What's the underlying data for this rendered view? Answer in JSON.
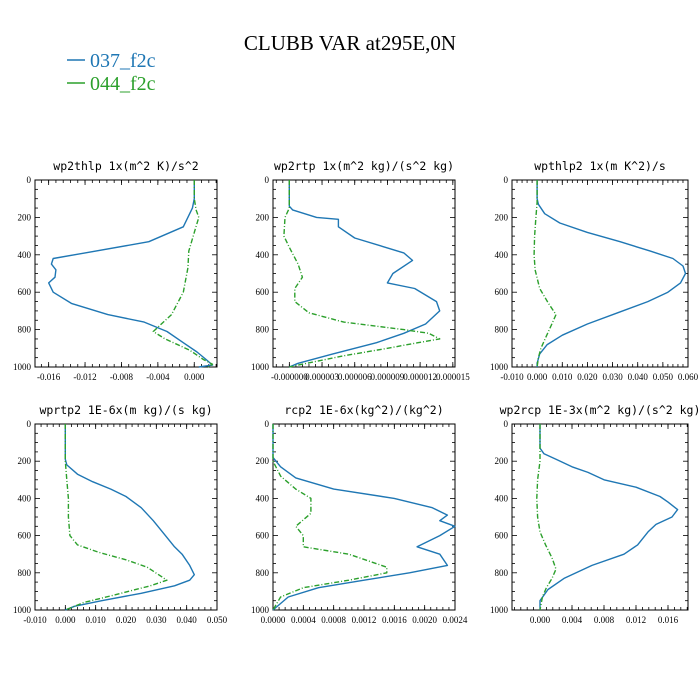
{
  "figure": {
    "title": "CLUBB VAR at295E,0N",
    "legend": [
      {
        "label": "037_f2c",
        "color": "#1f77b4",
        "style": "solid"
      },
      {
        "label": "044_f2c",
        "color": "#2ca02c",
        "style": "dashdot"
      }
    ]
  },
  "chart_data": [
    {
      "type": "line",
      "title": "wp2thlp  1x(m^2 K)/s^2",
      "xlim": [
        -0.0175,
        0.0025
      ],
      "ylim": [
        1000,
        0
      ],
      "xticks": [
        -0.016,
        -0.012,
        -0.008,
        -0.004,
        0.0
      ],
      "xtick_labels": [
        "-0.016",
        "-0.012",
        "-0.008",
        "-0.004",
        "0.000"
      ],
      "yticks": [
        0,
        200,
        400,
        600,
        800,
        1000
      ],
      "series": [
        {
          "name": "037_f2c",
          "points": [
            [
              0.0,
              0
            ],
            [
              0.0,
              50
            ],
            [
              0.0,
              100
            ],
            [
              -0.0002,
              150
            ],
            [
              -0.0012,
              250
            ],
            [
              -0.005,
              330
            ],
            [
              -0.012,
              390
            ],
            [
              -0.0155,
              420
            ],
            [
              -0.0157,
              450
            ],
            [
              -0.0152,
              480
            ],
            [
              -0.0153,
              520
            ],
            [
              -0.016,
              550
            ],
            [
              -0.0155,
              600
            ],
            [
              -0.0135,
              660
            ],
            [
              -0.0095,
              720
            ],
            [
              -0.0055,
              760
            ],
            [
              -0.003,
              810
            ],
            [
              -0.0012,
              870
            ],
            [
              0.0003,
              920
            ],
            [
              0.0013,
              960
            ],
            [
              0.002,
              990
            ],
            [
              0.0005,
              1000
            ]
          ]
        },
        {
          "name": "044_f2c",
          "points": [
            [
              0.0,
              0
            ],
            [
              0.0,
              80
            ],
            [
              0.0,
              100
            ],
            [
              0.0002,
              160
            ],
            [
              0.0005,
              200
            ],
            [
              0.0,
              280
            ],
            [
              -0.0006,
              380
            ],
            [
              -0.0007,
              470
            ],
            [
              -0.0012,
              600
            ],
            [
              -0.0025,
              720
            ],
            [
              -0.0045,
              810
            ],
            [
              -0.0032,
              850
            ],
            [
              -0.0005,
              910
            ],
            [
              0.001,
              960
            ],
            [
              0.002,
              985
            ],
            [
              0.0015,
              1000
            ]
          ]
        }
      ]
    },
    {
      "type": "line",
      "title": "wp2rtp  1x(m^2 kg)/(s^2 kg)",
      "xlim": [
        -1.5e-06,
        1.52e-05
      ],
      "ylim": [
        1000,
        0
      ],
      "xticks": [
        0.0,
        3e-06,
        6e-06,
        9e-06,
        1.2e-05,
        1.5e-05
      ],
      "xtick_labels": [
        "-0.000000",
        "0.000003",
        "0.000006",
        "0.000009",
        "0.000012",
        "0.000015"
      ],
      "yticks": [
        0,
        200,
        400,
        600,
        800,
        1000
      ],
      "series": [
        {
          "name": "037_f2c",
          "points": [
            [
              0.0,
              0
            ],
            [
              0.0,
              140
            ],
            [
              3e-07,
              160
            ],
            [
              2.5e-06,
              200
            ],
            [
              4.5e-06,
              210
            ],
            [
              4.5e-06,
              250
            ],
            [
              6e-06,
              310
            ],
            [
              1.05e-05,
              390
            ],
            [
              1.13e-05,
              430
            ],
            [
              9.5e-06,
              500
            ],
            [
              9e-06,
              550
            ],
            [
              1.15e-05,
              580
            ],
            [
              1.35e-05,
              650
            ],
            [
              1.38e-05,
              700
            ],
            [
              1.25e-05,
              770
            ],
            [
              1.05e-05,
              820
            ],
            [
              8e-06,
              870
            ],
            [
              4e-06,
              930
            ],
            [
              8e-07,
              980
            ],
            [
              0.0,
              1000
            ]
          ]
        },
        {
          "name": "044_f2c",
          "points": [
            [
              0.0,
              0
            ],
            [
              0.0,
              150
            ],
            [
              -4e-07,
              200
            ],
            [
              -5e-07,
              300
            ],
            [
              0.0,
              360
            ],
            [
              8e-07,
              450
            ],
            [
              1.2e-06,
              520
            ],
            [
              5e-07,
              580
            ],
            [
              5e-07,
              650
            ],
            [
              1.8e-06,
              710
            ],
            [
              5e-06,
              760
            ],
            [
              1.05e-05,
              800
            ],
            [
              1.28e-05,
              820
            ],
            [
              1.38e-05,
              850
            ],
            [
              1.18e-05,
              870
            ],
            [
              9e-06,
              900
            ],
            [
              5e-06,
              940
            ],
            [
              1.2e-06,
              985
            ],
            [
              0.0,
              1000
            ]
          ]
        }
      ]
    },
    {
      "type": "line",
      "title": "wpthlp2  1x(m K^2)/s",
      "xlim": [
        -0.01,
        0.06
      ],
      "ylim": [
        1000,
        0
      ],
      "xticks": [
        -0.01,
        0.0,
        0.01,
        0.02,
        0.03,
        0.04,
        0.05,
        0.06
      ],
      "xtick_labels": [
        "-0.010",
        "0.000",
        "0.010",
        "0.020",
        "0.030",
        "0.040",
        "0.050",
        "0.060"
      ],
      "yticks": [
        0,
        200,
        400,
        600,
        800,
        1000
      ],
      "series": [
        {
          "name": "037_f2c",
          "points": [
            [
              0.0,
              0
            ],
            [
              0.0,
              100
            ],
            [
              0.0005,
              130
            ],
            [
              0.003,
              180
            ],
            [
              0.009,
              230
            ],
            [
              0.02,
              280
            ],
            [
              0.033,
              330
            ],
            [
              0.045,
              380
            ],
            [
              0.054,
              420
            ],
            [
              0.058,
              460
            ],
            [
              0.059,
              500
            ],
            [
              0.057,
              550
            ],
            [
              0.052,
              600
            ],
            [
              0.044,
              650
            ],
            [
              0.032,
              710
            ],
            [
              0.02,
              770
            ],
            [
              0.01,
              830
            ],
            [
              0.004,
              880
            ],
            [
              0.001,
              930
            ],
            [
              0.0,
              980
            ],
            [
              0.0,
              1000
            ]
          ]
        },
        {
          "name": "044_f2c",
          "points": [
            [
              0.0,
              0
            ],
            [
              0.0,
              120
            ],
            [
              -0.0005,
              200
            ],
            [
              -0.001,
              300
            ],
            [
              -0.0012,
              400
            ],
            [
              -0.0008,
              480
            ],
            [
              0.001,
              580
            ],
            [
              0.0045,
              660
            ],
            [
              0.0075,
              720
            ],
            [
              0.0055,
              780
            ],
            [
              0.0035,
              840
            ],
            [
              0.0015,
              900
            ],
            [
              0.0005,
              950
            ],
            [
              0.0,
              1000
            ]
          ]
        }
      ]
    },
    {
      "type": "line",
      "title": "wprtp2  1E-6x(m kg)/(s kg)",
      "xlim": [
        -0.01,
        0.05
      ],
      "ylim": [
        1000,
        0
      ],
      "xticks": [
        -0.01,
        0.0,
        0.01,
        0.02,
        0.03,
        0.04,
        0.05
      ],
      "xtick_labels": [
        "-0.010",
        "0.000",
        "0.010",
        "0.020",
        "0.030",
        "0.040",
        "0.050"
      ],
      "yticks": [
        0,
        200,
        400,
        600,
        800,
        1000
      ],
      "series": [
        {
          "name": "037_f2c",
          "points": [
            [
              0.0,
              0
            ],
            [
              0.0,
              190
            ],
            [
              0.0005,
              220
            ],
            [
              0.004,
              270
            ],
            [
              0.009,
              310
            ],
            [
              0.015,
              350
            ],
            [
              0.02,
              390
            ],
            [
              0.025,
              450
            ],
            [
              0.029,
              520
            ],
            [
              0.033,
              600
            ],
            [
              0.036,
              660
            ],
            [
              0.0385,
              700
            ],
            [
              0.041,
              760
            ],
            [
              0.0425,
              810
            ],
            [
              0.041,
              840
            ],
            [
              0.036,
              870
            ],
            [
              0.025,
              910
            ],
            [
              0.012,
              950
            ],
            [
              0.003,
              980
            ],
            [
              0.0,
              1000
            ]
          ]
        },
        {
          "name": "044_f2c",
          "points": [
            [
              0.0,
              0
            ],
            [
              0.0,
              200
            ],
            [
              0.0005,
              300
            ],
            [
              0.001,
              400
            ],
            [
              0.001,
              500
            ],
            [
              0.0015,
              600
            ],
            [
              0.004,
              650
            ],
            [
              0.011,
              690
            ],
            [
              0.02,
              730
            ],
            [
              0.027,
              770
            ],
            [
              0.0335,
              840
            ],
            [
              0.028,
              870
            ],
            [
              0.016,
              920
            ],
            [
              0.006,
              960
            ],
            [
              0.0,
              1000
            ]
          ]
        }
      ]
    },
    {
      "type": "line",
      "title": "rcp2  1E-6x(kg^2)/(kg^2)",
      "xlim": [
        0.0,
        0.0024
      ],
      "ylim": [
        1000,
        0
      ],
      "xticks": [
        0.0,
        0.0004,
        0.0008,
        0.0012,
        0.0016,
        0.002,
        0.0024
      ],
      "xtick_labels": [
        "0.0000",
        "0.0004",
        "0.0008",
        "0.0012",
        "0.0016",
        "0.0020",
        "0.0024"
      ],
      "yticks": [
        0,
        200,
        400,
        600,
        800,
        1000
      ],
      "series": [
        {
          "name": "037_f2c",
          "points": [
            [
              0.0,
              0
            ],
            [
              0.0,
              180
            ],
            [
              0.0001,
              230
            ],
            [
              0.0003,
              290
            ],
            [
              0.0008,
              350
            ],
            [
              0.0016,
              400
            ],
            [
              0.0021,
              450
            ],
            [
              0.0023,
              490
            ],
            [
              0.0022,
              520
            ],
            [
              0.0024,
              550
            ],
            [
              0.0022,
              600
            ],
            [
              0.0019,
              660
            ],
            [
              0.0022,
              700
            ],
            [
              0.0023,
              760
            ],
            [
              0.0018,
              800
            ],
            [
              0.0012,
              840
            ],
            [
              0.0006,
              880
            ],
            [
              0.0002,
              930
            ],
            [
              0.0,
              1000
            ]
          ]
        },
        {
          "name": "044_f2c",
          "points": [
            [
              0.0,
              0
            ],
            [
              0.0,
              200
            ],
            [
              0.0001,
              280
            ],
            [
              0.0003,
              350
            ],
            [
              0.0005,
              400
            ],
            [
              0.0005,
              480
            ],
            [
              0.0003,
              550
            ],
            [
              0.0004,
              600
            ],
            [
              0.0004,
              660
            ],
            [
              0.001,
              700
            ],
            [
              0.0015,
              770
            ],
            [
              0.0015,
              800
            ],
            [
              0.001,
              840
            ],
            [
              0.0004,
              880
            ],
            [
              0.0001,
              930
            ],
            [
              0.0,
              1000
            ]
          ]
        }
      ]
    },
    {
      "type": "line",
      "title": "wp2rcp  1E-3x(m^2 kg)/(s^2 kg)",
      "xlim": [
        -0.0035,
        0.0185
      ],
      "ylim": [
        1000,
        0
      ],
      "xticks": [
        0.0,
        0.004,
        0.008,
        0.012,
        0.016
      ],
      "xtick_labels": [
        "0.000",
        "0.004",
        "0.008",
        "0.012",
        "0.016"
      ],
      "yticks": [
        0,
        200,
        400,
        600,
        800,
        1000
      ],
      "series": [
        {
          "name": "037_f2c",
          "points": [
            [
              0.0,
              0
            ],
            [
              0.0,
              130
            ],
            [
              0.0005,
              160
            ],
            [
              0.002,
              190
            ],
            [
              0.004,
              230
            ],
            [
              0.006,
              260
            ],
            [
              0.008,
              300
            ],
            [
              0.012,
              340
            ],
            [
              0.015,
              390
            ],
            [
              0.016,
              420
            ],
            [
              0.0172,
              460
            ],
            [
              0.0165,
              500
            ],
            [
              0.0145,
              540
            ],
            [
              0.0135,
              580
            ],
            [
              0.0122,
              650
            ],
            [
              0.0105,
              700
            ],
            [
              0.0065,
              760
            ],
            [
              0.003,
              830
            ],
            [
              0.001,
              890
            ],
            [
              0.0,
              950
            ],
            [
              0.0,
              1000
            ]
          ]
        },
        {
          "name": "044_f2c",
          "points": [
            [
              0.0,
              0
            ],
            [
              0.0,
              200
            ],
            [
              -0.0003,
              300
            ],
            [
              -0.0004,
              400
            ],
            [
              -0.0003,
              500
            ],
            [
              0.0,
              580
            ],
            [
              0.0007,
              650
            ],
            [
              0.0015,
              720
            ],
            [
              0.002,
              780
            ],
            [
              0.0015,
              830
            ],
            [
              0.0008,
              880
            ],
            [
              0.0003,
              930
            ],
            [
              0.0,
              1000
            ]
          ]
        }
      ]
    }
  ]
}
